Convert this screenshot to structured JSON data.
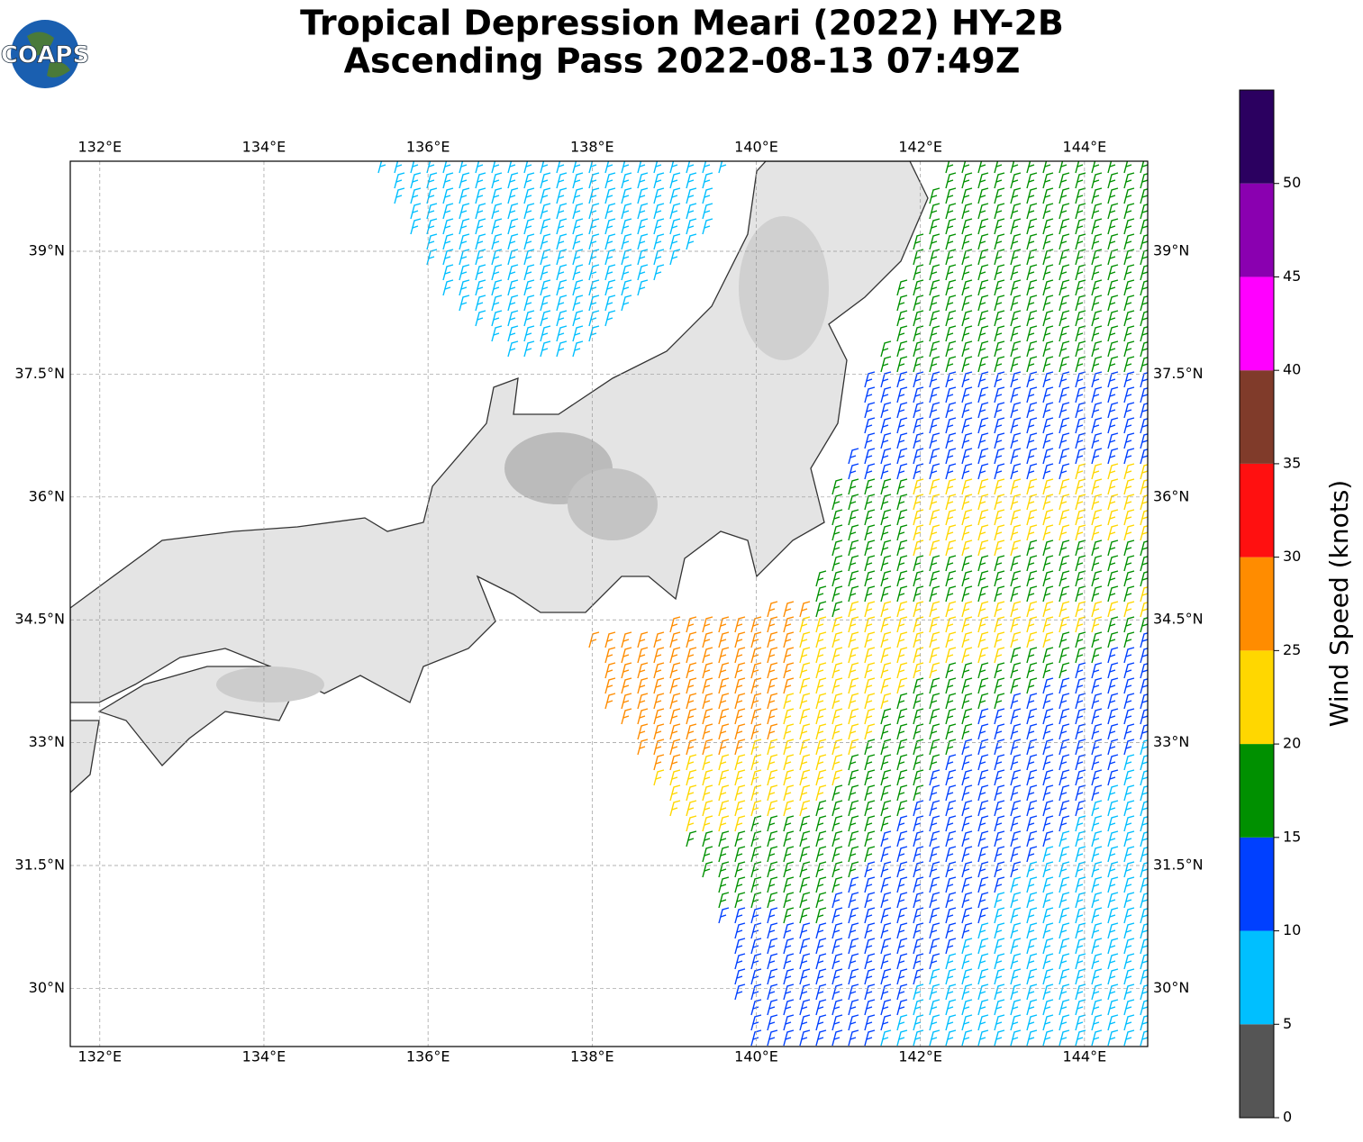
{
  "chart_data": {
    "type": "wind-map",
    "title": "Tropical Depression Meari (2022) HY-2B",
    "subtitle": "Ascending Pass 2022-08-13 07:49Z",
    "logo": "COAPS",
    "xlim": [
      131.64,
      144.77
    ],
    "ylim": [
      29.29,
      40.1
    ],
    "xticks": [
      {
        "value": 132,
        "label": "132°E"
      },
      {
        "value": 134,
        "label": "134°E"
      },
      {
        "value": 136,
        "label": "136°E"
      },
      {
        "value": 138,
        "label": "138°E"
      },
      {
        "value": 140,
        "label": "140°E"
      },
      {
        "value": 142,
        "label": "142°E"
      },
      {
        "value": 144,
        "label": "144°E"
      }
    ],
    "yticks": [
      {
        "value": 30,
        "label": "30°N"
      },
      {
        "value": 31.5,
        "label": "31.5°N"
      },
      {
        "value": 33,
        "label": "33°N"
      },
      {
        "value": 34.5,
        "label": "34.5°N"
      },
      {
        "value": 36,
        "label": "36°N"
      },
      {
        "value": 37.5,
        "label": "37.5°N"
      },
      {
        "value": 39,
        "label": "39°N"
      }
    ],
    "grid": true,
    "colorbar": {
      "label": "Wind Speed (knots)",
      "lim": [
        0,
        55
      ],
      "ticks": [
        0,
        5,
        10,
        15,
        20,
        25,
        30,
        35,
        40,
        45,
        50
      ],
      "colors": [
        "#555555",
        "#00bfff",
        "#0040ff",
        "#009000",
        "#ffd700",
        "#ff8c00",
        "#ff1010",
        "#803b2a",
        "#ff00ff",
        "#8a00b0",
        "#2b0060"
      ]
    }
  }
}
